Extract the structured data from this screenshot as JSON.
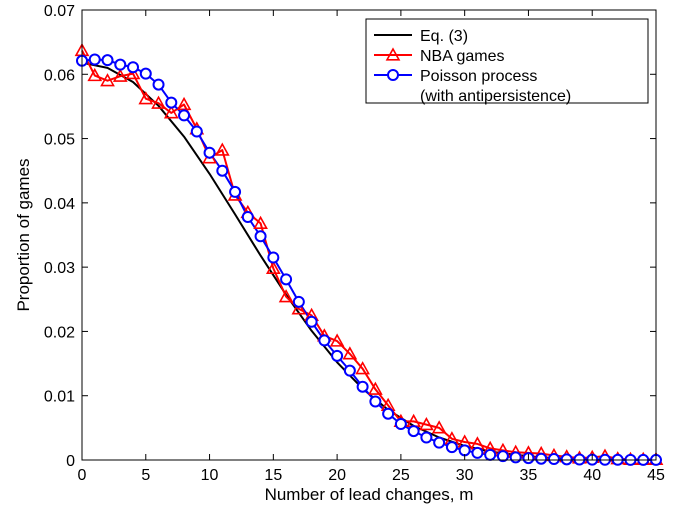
{
  "chart_data": {
    "type": "line",
    "title": "",
    "xlabel": "Number of lead changes, m",
    "ylabel": "Proportion of games",
    "xlim": [
      0,
      45
    ],
    "ylim": [
      0,
      0.07
    ],
    "xticks": [
      "0",
      "5",
      "10",
      "15",
      "20",
      "25",
      "30",
      "35",
      "40",
      "45"
    ],
    "yticks": [
      "0",
      "0.01",
      "0.02",
      "0.03",
      "0.04",
      "0.05",
      "0.06",
      "0.07"
    ],
    "grid": false,
    "legend_position": "top-right",
    "series": [
      {
        "name": "Eq. (3)",
        "color": "#000000",
        "marker": "none",
        "x": [
          0,
          2,
          4,
          6,
          8,
          10,
          12,
          14,
          16,
          18,
          20,
          22,
          24,
          26,
          28,
          30,
          32,
          34,
          36,
          38,
          40,
          42,
          44,
          45
        ],
        "y": [
          0.0618,
          0.061,
          0.0588,
          0.0551,
          0.0503,
          0.0445,
          0.0382,
          0.0318,
          0.0257,
          0.0201,
          0.0152,
          0.0111,
          0.0078,
          0.0053,
          0.0035,
          0.0022,
          0.0013,
          0.0008,
          0.0004,
          0.0002,
          0.0001,
          6e-05,
          3e-05,
          2e-05
        ]
      },
      {
        "name": "NBA games",
        "color": "#ff0000",
        "marker": "triangle",
        "x": [
          0,
          1,
          2,
          3,
          4,
          5,
          6,
          7,
          8,
          9,
          10,
          11,
          12,
          13,
          14,
          15,
          16,
          17,
          18,
          19,
          20,
          21,
          22,
          23,
          24,
          25,
          26,
          27,
          28,
          29,
          30,
          31,
          32,
          33,
          34,
          35,
          36,
          37,
          38,
          39,
          40,
          41,
          42,
          43,
          44,
          45
        ],
        "y": [
          0.0637,
          0.0598,
          0.059,
          0.0597,
          0.0601,
          0.0562,
          0.0555,
          0.054,
          0.0553,
          0.0515,
          0.047,
          0.0482,
          0.0412,
          0.0385,
          0.0368,
          0.0298,
          0.0254,
          0.0235,
          0.0225,
          0.0193,
          0.0185,
          0.0165,
          0.0142,
          0.011,
          0.0085,
          0.006,
          0.006,
          0.0055,
          0.005,
          0.0033,
          0.0028,
          0.0025,
          0.0018,
          0.0015,
          0.0012,
          0.0011,
          0.001,
          0.0007,
          0.0005,
          0.0003,
          0.0004,
          0.0006,
          0.0002,
          0.0001,
          0.0001,
          0.0001
        ]
      },
      {
        "name": "Poisson process\n(with antipersistence)",
        "color": "#0000ff",
        "marker": "circle",
        "x": [
          0,
          1,
          2,
          3,
          4,
          5,
          6,
          7,
          8,
          9,
          10,
          11,
          12,
          13,
          14,
          15,
          16,
          17,
          18,
          19,
          20,
          21,
          22,
          23,
          24,
          25,
          26,
          27,
          28,
          29,
          30,
          31,
          32,
          33,
          34,
          35,
          36,
          37,
          38,
          39,
          40,
          41,
          42,
          43,
          44,
          45
        ],
        "y": [
          0.0621,
          0.0623,
          0.0622,
          0.0615,
          0.0611,
          0.0601,
          0.0584,
          0.0556,
          0.0536,
          0.0511,
          0.0478,
          0.045,
          0.0417,
          0.0378,
          0.0348,
          0.0315,
          0.0281,
          0.0246,
          0.0215,
          0.0186,
          0.0162,
          0.0139,
          0.0114,
          0.0091,
          0.0072,
          0.0056,
          0.0045,
          0.0035,
          0.0027,
          0.002,
          0.0015,
          0.0011,
          0.0008,
          0.0006,
          0.0004,
          0.0003,
          0.0002,
          0.00015,
          0.0001,
          8e-05,
          5e-05,
          4e-05,
          3e-05,
          2e-05,
          1e-05,
          1e-05
        ]
      }
    ]
  }
}
